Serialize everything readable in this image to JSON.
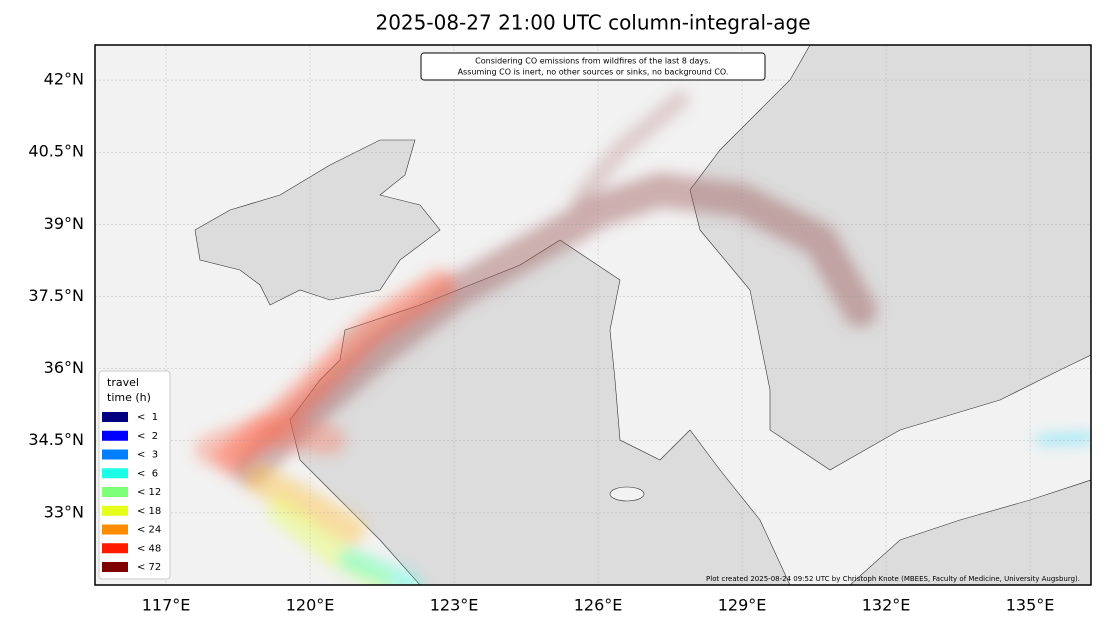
{
  "title": "2025-08-27 21:00 UTC column-integral-age",
  "annotation": [
    "Considering CO emissions from wildfires of the last 8 days.",
    "Assuming CO is inert, no other sources or sinks, no background CO."
  ],
  "credit": "Plot created 2025-08-24 09:52 UTC by Christoph Knote (MBEES, Faculty of Medicine, University Augsburg).",
  "map": {
    "xlim": [
      115.52,
      136.27
    ],
    "ylim": [
      31.5,
      42.73
    ],
    "xticks": [
      {
        "value": 117,
        "label": "117°E"
      },
      {
        "value": 120,
        "label": "120°E"
      },
      {
        "value": 123,
        "label": "123°E"
      },
      {
        "value": 126,
        "label": "126°E"
      },
      {
        "value": 129,
        "label": "129°E"
      },
      {
        "value": 132,
        "label": "132°E"
      },
      {
        "value": 135,
        "label": "135°E"
      }
    ],
    "yticks": [
      {
        "value": 33,
        "label": "33°N"
      },
      {
        "value": 34.5,
        "label": "34.5°N"
      },
      {
        "value": 36,
        "label": "36°N"
      },
      {
        "value": 37.5,
        "label": "37.5°N"
      },
      {
        "value": 39,
        "label": "39°N"
      },
      {
        "value": 40.5,
        "label": "40.5°N"
      },
      {
        "value": 42,
        "label": "42°N"
      }
    ],
    "grid": true
  },
  "legend": {
    "title": [
      "travel",
      "time (h)"
    ],
    "entries": [
      {
        "label": "<  1",
        "color": "#000080"
      },
      {
        "label": "<  2",
        "color": "#0000ff"
      },
      {
        "label": "<  3",
        "color": "#0080ff"
      },
      {
        "label": "<  6",
        "color": "#1affe6"
      },
      {
        "label": "< 12",
        "color": "#7dff7a"
      },
      {
        "label": "< 18",
        "color": "#e6ff1a"
      },
      {
        "label": "< 24",
        "color": "#ff8c00"
      },
      {
        "label": "< 48",
        "color": "#ff1a00"
      },
      {
        "label": "< 72",
        "color": "#7f0000"
      }
    ]
  }
}
